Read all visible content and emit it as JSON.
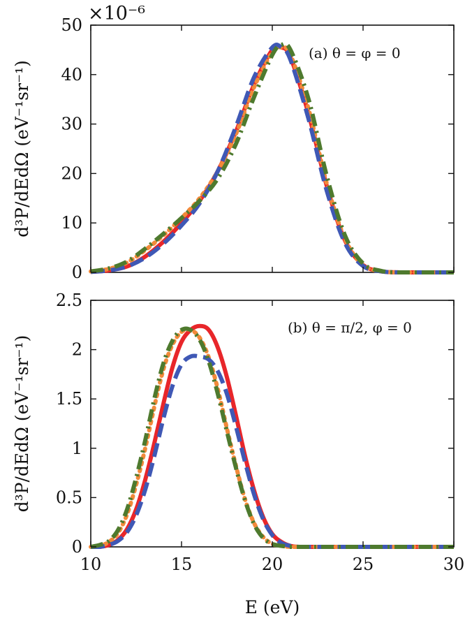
{
  "chart_data": [
    {
      "type": "line",
      "panel": "a",
      "annotation": "(a) θ = φ = 0",
      "ylabel": "d³P/dEdΩ (eV⁻¹sr⁻¹)",
      "y_multiplier": "×10⁻⁶",
      "xlim": [
        10,
        30
      ],
      "ylim": [
        0,
        50
      ],
      "yticks": [
        "0",
        "10",
        "20",
        "30",
        "40",
        "50"
      ],
      "x": [
        10,
        11,
        12,
        13,
        14,
        15,
        16,
        17,
        18,
        19,
        20,
        20.5,
        21,
        22,
        23,
        24,
        25,
        26,
        27,
        28,
        29,
        30
      ],
      "series": [
        {
          "color": "#e8262a",
          "dash": "solid",
          "values": [
            0.1,
            0.4,
            1.2,
            3.2,
            6.2,
            10.0,
            14.5,
            20.5,
            28.5,
            38.0,
            45.0,
            45.5,
            43.5,
            32.0,
            17.5,
            6.5,
            1.5,
            0.2,
            0,
            0,
            0,
            0
          ]
        },
        {
          "color": "#f28a3a",
          "dash": "dot",
          "values": [
            0.2,
            0.7,
            2.0,
            4.5,
            7.5,
            11.0,
            15.0,
            20.5,
            28.0,
            37.5,
            44.5,
            45.5,
            44.0,
            33.0,
            18.0,
            6.8,
            1.5,
            0.2,
            0,
            0,
            0,
            0
          ]
        },
        {
          "color": "#3f58b5",
          "dash": "dash",
          "values": [
            0.1,
            0.4,
            1.2,
            3.0,
            5.8,
            9.5,
            14.0,
            20.5,
            29.5,
            39.5,
            45.5,
            45.5,
            43.0,
            31.0,
            16.5,
            6.0,
            1.3,
            0.2,
            0,
            0,
            0,
            0
          ]
        },
        {
          "color": "#4e7a2e",
          "dash": "dashdot",
          "values": [
            0.2,
            0.8,
            2.2,
            4.8,
            7.8,
            11.0,
            14.5,
            19.0,
            26.0,
            35.5,
            44.0,
            46.0,
            45.0,
            35.0,
            19.5,
            7.5,
            1.8,
            0.3,
            0,
            0,
            0,
            0
          ]
        }
      ]
    },
    {
      "type": "line",
      "panel": "b",
      "annotation": "(b) θ = π/2, φ = 0",
      "ylabel": "d³P/dEdΩ (eV⁻¹sr⁻¹)",
      "xlabel": "E (eV)",
      "xlim": [
        10,
        30
      ],
      "ylim": [
        0,
        2.5
      ],
      "xticks": [
        "10",
        "15",
        "20",
        "25",
        "30"
      ],
      "yticks": [
        "0",
        "0.5",
        "1",
        "1.5",
        "2",
        "2.5"
      ],
      "x": [
        10,
        10.5,
        11,
        11.5,
        12,
        12.5,
        13,
        13.5,
        14,
        14.5,
        15,
        15.5,
        16,
        16.5,
        17,
        17.5,
        18,
        18.5,
        19,
        19.5,
        20,
        20.5,
        21,
        21.5,
        22,
        23,
        24,
        25,
        26,
        27,
        28,
        29,
        30
      ],
      "series": [
        {
          "color": "#e8262a",
          "dash": "solid",
          "values": [
            0.0,
            0.0,
            0.02,
            0.07,
            0.18,
            0.38,
            0.68,
            1.05,
            1.45,
            1.82,
            2.08,
            2.2,
            2.24,
            2.2,
            2.02,
            1.72,
            1.33,
            0.92,
            0.57,
            0.3,
            0.13,
            0.05,
            0.01,
            0,
            0,
            0,
            0,
            0,
            0,
            0,
            0,
            0,
            0
          ]
        },
        {
          "color": "#f28a3a",
          "dash": "dot",
          "values": [
            0.0,
            0.01,
            0.05,
            0.14,
            0.33,
            0.63,
            1.0,
            1.42,
            1.8,
            2.05,
            2.18,
            2.2,
            2.12,
            1.92,
            1.6,
            1.2,
            0.82,
            0.48,
            0.24,
            0.1,
            0.03,
            0.01,
            0,
            0,
            0,
            0,
            0,
            0,
            0,
            0,
            0,
            0,
            0
          ]
        },
        {
          "color": "#3f58b5",
          "dash": "dash",
          "values": [
            0.0,
            0.0,
            0.02,
            0.06,
            0.15,
            0.32,
            0.58,
            0.92,
            1.3,
            1.63,
            1.85,
            1.93,
            1.93,
            1.9,
            1.78,
            1.55,
            1.22,
            0.86,
            0.53,
            0.28,
            0.12,
            0.04,
            0.01,
            0,
            0,
            0,
            0,
            0,
            0,
            0,
            0,
            0,
            0
          ]
        },
        {
          "color": "#4e7a2e",
          "dash": "dashdot",
          "values": [
            0.0,
            0.02,
            0.06,
            0.17,
            0.38,
            0.7,
            1.08,
            1.5,
            1.86,
            2.09,
            2.2,
            2.2,
            2.1,
            1.88,
            1.55,
            1.17,
            0.8,
            0.47,
            0.23,
            0.09,
            0.03,
            0.01,
            0,
            0,
            0,
            0,
            0,
            0,
            0,
            0,
            0,
            0,
            0
          ]
        }
      ]
    }
  ]
}
